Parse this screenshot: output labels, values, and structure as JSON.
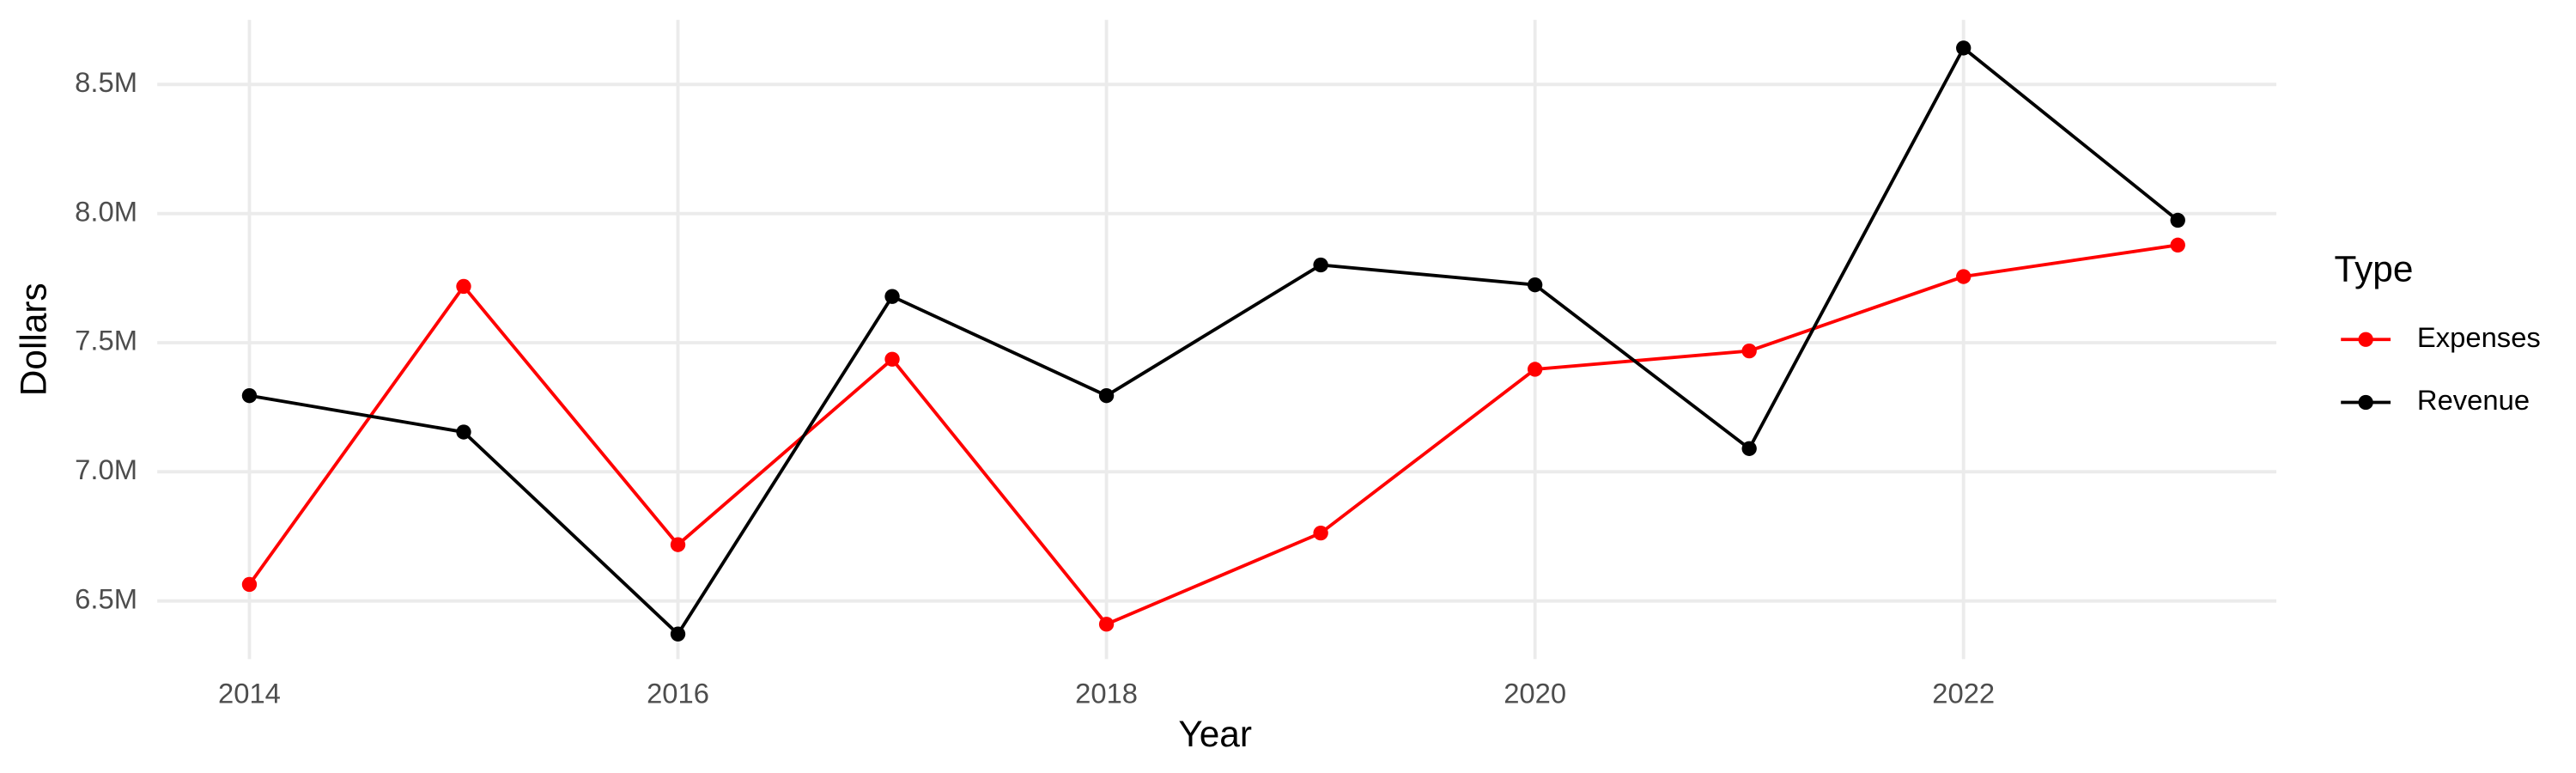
{
  "chart_data": {
    "type": "line",
    "x_label": "Year",
    "y_label": "Dollars",
    "x": [
      2014,
      2015,
      2016,
      2017,
      2018,
      2019,
      2020,
      2021,
      2022,
      2023
    ],
    "series": [
      {
        "name": "Expenses",
        "color": "#ff0000",
        "values": [
          6564000,
          7718000,
          6718000,
          7436000,
          6410000,
          6763000,
          7397000,
          7468000,
          7756000,
          7878000
        ]
      },
      {
        "name": "Revenue",
        "color": "#000000",
        "values": [
          7295000,
          7154000,
          6372000,
          7679000,
          7295000,
          7801000,
          7724000,
          7090000,
          8641000,
          7974000
        ]
      }
    ],
    "xlim": [
      2013.57,
      2023.46
    ],
    "xticks": [
      2014,
      2016,
      2018,
      2020,
      2022
    ],
    "ylim": [
      6275000,
      8750000
    ],
    "yticks": [
      {
        "value": 6500000,
        "label": "6.5M"
      },
      {
        "value": 7000000,
        "label": "7.0M"
      },
      {
        "value": 7500000,
        "label": "7.5M"
      },
      {
        "value": 8000000,
        "label": "8.0M"
      },
      {
        "value": 8500000,
        "label": "8.5M"
      }
    ],
    "grid": true,
    "legend_title": "Type",
    "legend_position": "right"
  }
}
